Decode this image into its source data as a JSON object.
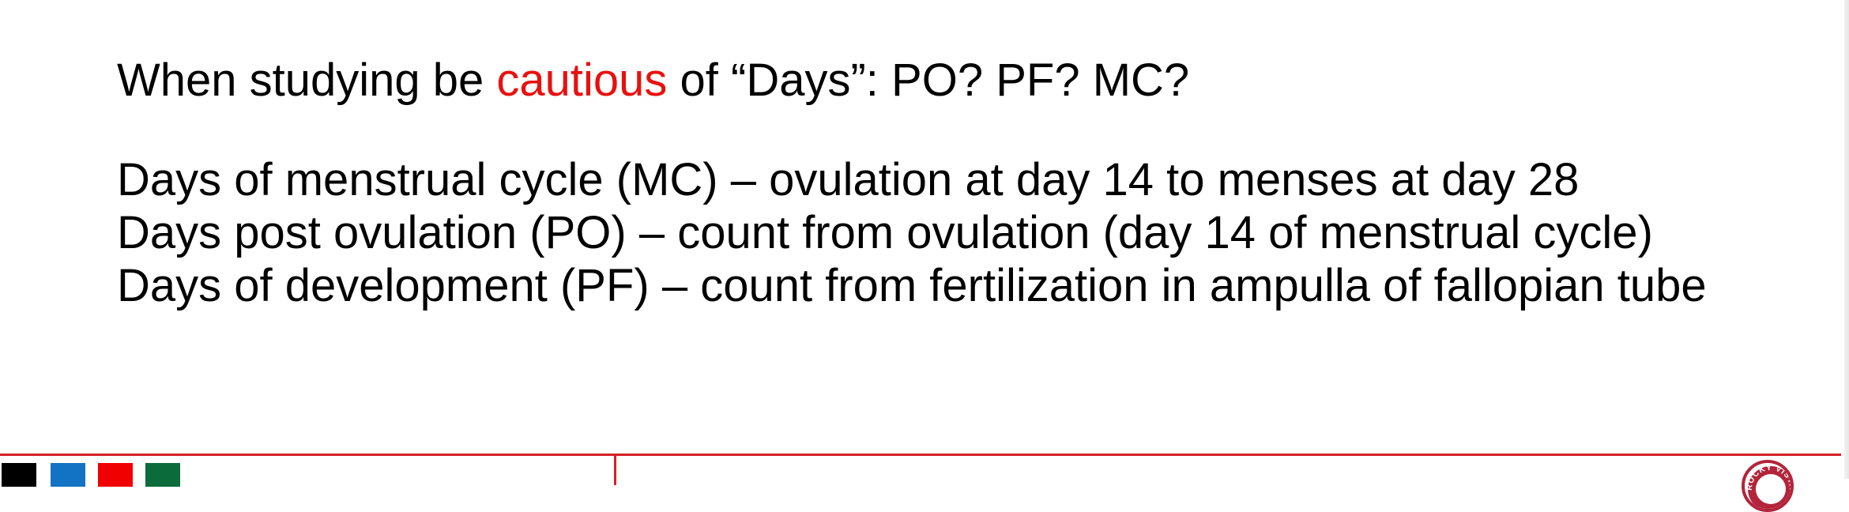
{
  "heading": {
    "prefix": "When studying be ",
    "highlight": "cautious",
    "suffix": " of “Days”: PO? PF? MC?"
  },
  "definitions": [
    "Days of menstrual cycle (MC) – ovulation at day 14 to menses at day 28",
    "Days post ovulation (PO) – count from ovulation (day 14 of menstrual cycle)",
    "Days of development (PF) – count from fertilization in ampulla of fallopian tube"
  ],
  "colors": {
    "highlight": "#e8110f",
    "footer_rule": "#d42027",
    "swatch_black": "#000000",
    "swatch_blue": "#1273c4",
    "swatch_red": "#f00000",
    "swatch_green": "#0b6b3a",
    "seal": "#b3243b"
  },
  "footer": {
    "swatches": [
      "black",
      "blue",
      "red",
      "green"
    ],
    "seal_text": "ROCKY VISTA"
  }
}
